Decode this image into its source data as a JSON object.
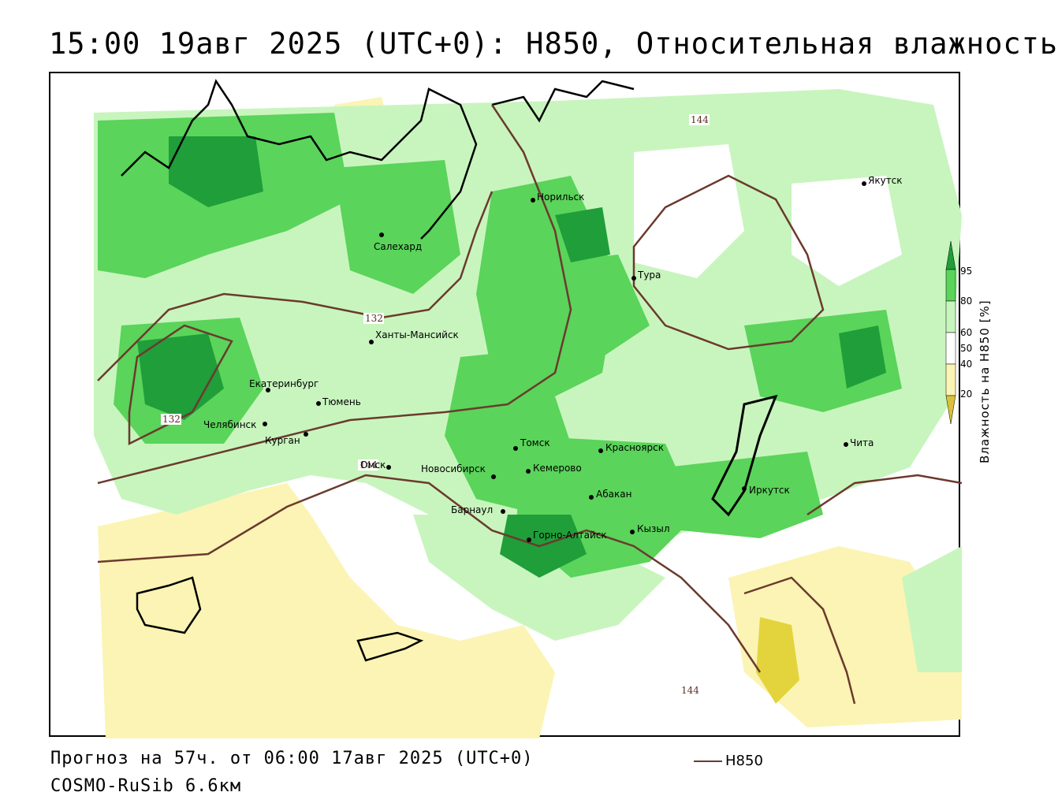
{
  "title": "15:00 19авг 2025 (UTC+0): H850, Относительная влажность",
  "footer": {
    "forecast": "Прогноз на 57ч. от 06:00 17авг 2025 (UTC+0)",
    "model": "COSMO-RuSib 6.6км"
  },
  "legend": {
    "contour_label": "H850"
  },
  "colorbar": {
    "title": "Влажность на H850 [%]",
    "ticks": [
      "95",
      "80",
      "60",
      "50",
      "40",
      "20"
    ],
    "colors": {
      "very_dry": "#d9c23a",
      "dry": "#fbf4b4",
      "neutral": "#ffffff",
      "moist": "#c8f5be",
      "wet": "#5ad45a",
      "very_wet": "#1f9e3a"
    }
  },
  "contour_labels": [
    "144",
    "132",
    "132",
    "144",
    "144"
  ],
  "cities": [
    {
      "name": "Якутск"
    },
    {
      "name": "Норильск"
    },
    {
      "name": "Салехард"
    },
    {
      "name": "Тура"
    },
    {
      "name": "Ханты-Мансийск"
    },
    {
      "name": "Екатеринбург"
    },
    {
      "name": "Тюмень"
    },
    {
      "name": "Челябинск"
    },
    {
      "name": "Курган"
    },
    {
      "name": "Омск"
    },
    {
      "name": "Новосибирск"
    },
    {
      "name": "Томск"
    },
    {
      "name": "Кемерово"
    },
    {
      "name": "Красноярск"
    },
    {
      "name": "Абакан"
    },
    {
      "name": "Барнаул"
    },
    {
      "name": "Горно-Алтайск"
    },
    {
      "name": "Кызыл"
    },
    {
      "name": "Иркутск"
    },
    {
      "name": "Чита"
    }
  ]
}
